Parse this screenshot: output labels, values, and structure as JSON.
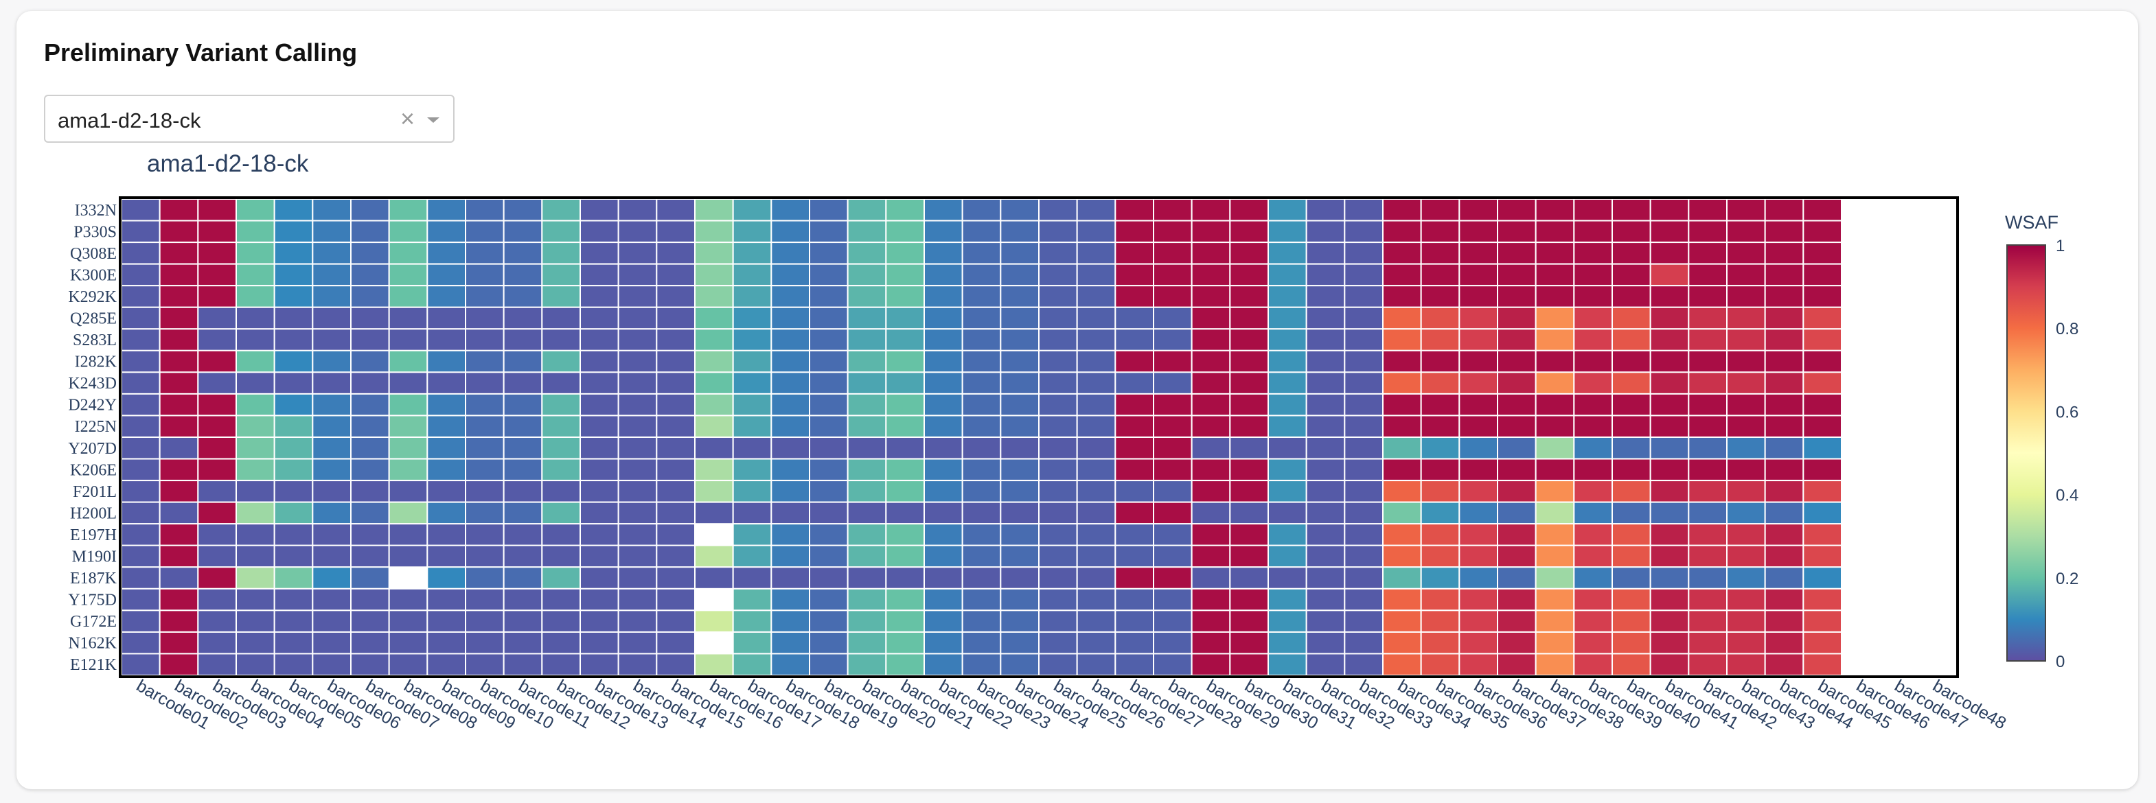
{
  "page": {
    "title": "Preliminary Variant Calling"
  },
  "sample_select": {
    "value": "ama1-d2-18-ck",
    "clear_icon": "×",
    "arrow_icon": "chevron-down-icon"
  },
  "chart_data": {
    "type": "heatmap",
    "title": "ama1-d2-18-ck",
    "colorbar_title": "WSAF",
    "colorscale": "Spectral (reversed)",
    "zlim": [
      0,
      1
    ],
    "colorbar_ticks": [
      "0",
      "0.2",
      "0.4",
      "0.6",
      "0.8",
      "1"
    ],
    "x": [
      "barcode01",
      "barcode02",
      "barcode03",
      "barcode04",
      "barcode05",
      "barcode06",
      "barcode07",
      "barcode08",
      "barcode09",
      "barcode10",
      "barcode11",
      "barcode12",
      "barcode13",
      "barcode14",
      "barcode15",
      "barcode16",
      "barcode17",
      "barcode18",
      "barcode19",
      "barcode20",
      "barcode21",
      "barcode22",
      "barcode23",
      "barcode24",
      "barcode25",
      "barcode26",
      "barcode27",
      "barcode28",
      "barcode29",
      "barcode30",
      "barcode31",
      "barcode32",
      "barcode33",
      "barcode34",
      "barcode35",
      "barcode36",
      "barcode37",
      "barcode38",
      "barcode39",
      "barcode40",
      "barcode41",
      "barcode42",
      "barcode43",
      "barcode44",
      "barcode45",
      "barcode46",
      "barcode47",
      "barcode48"
    ],
    "y": [
      "I332N",
      "P330S",
      "Q308E",
      "K300E",
      "K292K",
      "Q285E",
      "S283L",
      "I282K",
      "K243D",
      "D242Y",
      "I225N",
      "Y207D",
      "K206E",
      "F201L",
      "H200L",
      "E197H",
      "M190I",
      "E187K",
      "Y175D",
      "G172E",
      "N162K",
      "E121K"
    ],
    "z": [
      [
        0.02,
        0.98,
        0.98,
        0.2,
        0.1,
        0.08,
        0.05,
        0.2,
        0.08,
        0.05,
        0.05,
        0.18,
        0.02,
        0.02,
        0.02,
        0.25,
        0.15,
        0.08,
        0.05,
        0.18,
        0.2,
        0.08,
        0.05,
        0.05,
        0.03,
        0.03,
        0.98,
        0.98,
        0.98,
        0.98,
        0.12,
        0.02,
        0.02,
        0.98,
        0.98,
        0.98,
        0.98,
        0.98,
        0.98,
        0.98,
        0.98,
        0.98,
        0.98,
        0.98,
        0.98,
        null,
        null,
        null
      ],
      [
        0.02,
        0.98,
        0.98,
        0.2,
        0.1,
        0.08,
        0.05,
        0.2,
        0.08,
        0.05,
        0.05,
        0.18,
        0.02,
        0.02,
        0.02,
        0.25,
        0.15,
        0.08,
        0.05,
        0.18,
        0.2,
        0.08,
        0.05,
        0.05,
        0.03,
        0.03,
        0.98,
        0.98,
        0.98,
        0.98,
        0.12,
        0.02,
        0.02,
        0.98,
        0.98,
        0.98,
        0.98,
        0.98,
        0.98,
        0.98,
        0.98,
        0.98,
        0.98,
        0.98,
        0.98,
        null,
        null,
        null
      ],
      [
        0.02,
        0.98,
        0.98,
        0.2,
        0.1,
        0.08,
        0.05,
        0.2,
        0.08,
        0.05,
        0.05,
        0.18,
        0.02,
        0.02,
        0.02,
        0.25,
        0.15,
        0.08,
        0.05,
        0.18,
        0.2,
        0.08,
        0.05,
        0.05,
        0.03,
        0.03,
        0.98,
        0.98,
        0.98,
        0.98,
        0.12,
        0.02,
        0.02,
        0.98,
        0.98,
        0.98,
        0.98,
        0.98,
        0.98,
        0.98,
        0.98,
        0.98,
        0.98,
        0.98,
        0.98,
        null,
        null,
        null
      ],
      [
        0.02,
        0.98,
        0.98,
        0.2,
        0.1,
        0.08,
        0.05,
        0.2,
        0.08,
        0.05,
        0.05,
        0.18,
        0.02,
        0.02,
        0.02,
        0.25,
        0.15,
        0.08,
        0.05,
        0.18,
        0.2,
        0.08,
        0.05,
        0.05,
        0.03,
        0.03,
        0.98,
        0.98,
        0.98,
        0.98,
        0.12,
        0.02,
        0.02,
        0.98,
        0.98,
        0.98,
        0.98,
        0.98,
        0.98,
        0.98,
        0.9,
        0.98,
        0.98,
        0.98,
        0.98,
        null,
        null,
        null
      ],
      [
        0.02,
        0.98,
        0.98,
        0.2,
        0.1,
        0.08,
        0.05,
        0.2,
        0.08,
        0.05,
        0.05,
        0.18,
        0.02,
        0.02,
        0.02,
        0.25,
        0.15,
        0.08,
        0.05,
        0.18,
        0.2,
        0.08,
        0.05,
        0.05,
        0.03,
        0.03,
        0.98,
        0.98,
        0.98,
        0.98,
        0.12,
        0.02,
        0.02,
        0.98,
        0.98,
        0.98,
        0.98,
        0.98,
        0.98,
        0.98,
        0.98,
        0.98,
        0.98,
        0.98,
        0.98,
        null,
        null,
        null
      ],
      [
        0.02,
        0.98,
        0.02,
        0.02,
        0.02,
        0.02,
        0.02,
        0.02,
        0.02,
        0.02,
        0.02,
        0.02,
        0.02,
        0.02,
        0.02,
        0.2,
        0.12,
        0.08,
        0.05,
        0.15,
        0.15,
        0.08,
        0.05,
        0.05,
        0.03,
        0.03,
        0.03,
        0.03,
        0.98,
        0.98,
        0.12,
        0.02,
        0.02,
        0.82,
        0.86,
        0.9,
        0.95,
        0.75,
        0.9,
        0.85,
        0.95,
        0.92,
        0.92,
        0.95,
        0.88,
        null,
        null,
        null
      ],
      [
        0.02,
        0.98,
        0.02,
        0.02,
        0.02,
        0.02,
        0.02,
        0.02,
        0.02,
        0.02,
        0.02,
        0.02,
        0.02,
        0.02,
        0.02,
        0.2,
        0.12,
        0.08,
        0.05,
        0.15,
        0.15,
        0.08,
        0.05,
        0.05,
        0.03,
        0.03,
        0.03,
        0.03,
        0.98,
        0.98,
        0.12,
        0.02,
        0.02,
        0.82,
        0.86,
        0.9,
        0.95,
        0.75,
        0.9,
        0.85,
        0.95,
        0.92,
        0.92,
        0.95,
        0.88,
        null,
        null,
        null
      ],
      [
        0.02,
        0.98,
        0.98,
        0.2,
        0.1,
        0.08,
        0.05,
        0.2,
        0.08,
        0.05,
        0.05,
        0.18,
        0.02,
        0.02,
        0.02,
        0.25,
        0.15,
        0.08,
        0.05,
        0.18,
        0.2,
        0.08,
        0.05,
        0.05,
        0.03,
        0.03,
        0.98,
        0.98,
        0.98,
        0.98,
        0.12,
        0.02,
        0.02,
        0.98,
        0.98,
        0.98,
        0.98,
        0.98,
        0.98,
        0.98,
        0.98,
        0.98,
        0.98,
        0.98,
        0.98,
        null,
        null,
        null
      ],
      [
        0.02,
        0.98,
        0.02,
        0.02,
        0.02,
        0.02,
        0.02,
        0.02,
        0.02,
        0.02,
        0.02,
        0.02,
        0.02,
        0.02,
        0.02,
        0.2,
        0.12,
        0.08,
        0.05,
        0.15,
        0.15,
        0.08,
        0.05,
        0.05,
        0.03,
        0.03,
        0.03,
        0.03,
        0.98,
        0.98,
        0.12,
        0.02,
        0.02,
        0.82,
        0.86,
        0.9,
        0.95,
        0.75,
        0.9,
        0.85,
        0.95,
        0.92,
        0.92,
        0.95,
        0.88,
        null,
        null,
        null
      ],
      [
        0.02,
        0.98,
        0.98,
        0.2,
        0.1,
        0.08,
        0.05,
        0.2,
        0.08,
        0.05,
        0.05,
        0.18,
        0.02,
        0.02,
        0.02,
        0.25,
        0.15,
        0.08,
        0.05,
        0.18,
        0.2,
        0.08,
        0.05,
        0.05,
        0.03,
        0.03,
        0.98,
        0.98,
        0.98,
        0.98,
        0.12,
        0.02,
        0.02,
        0.98,
        0.98,
        0.98,
        0.98,
        0.98,
        0.98,
        0.98,
        0.98,
        0.98,
        0.98,
        0.98,
        0.98,
        null,
        null,
        null
      ],
      [
        0.02,
        0.98,
        0.98,
        0.22,
        0.18,
        0.08,
        0.05,
        0.22,
        0.08,
        0.05,
        0.05,
        0.18,
        0.02,
        0.02,
        0.02,
        0.3,
        0.15,
        0.08,
        0.05,
        0.18,
        0.2,
        0.08,
        0.05,
        0.05,
        0.03,
        0.03,
        0.98,
        0.98,
        0.98,
        0.98,
        0.12,
        0.02,
        0.02,
        0.98,
        0.98,
        0.98,
        0.98,
        0.98,
        0.98,
        0.98,
        0.98,
        0.98,
        0.98,
        0.98,
        0.98,
        null,
        null,
        null
      ],
      [
        0.02,
        0.02,
        0.98,
        0.22,
        0.18,
        0.08,
        0.05,
        0.22,
        0.08,
        0.05,
        0.05,
        0.18,
        0.02,
        0.02,
        0.02,
        0.02,
        0.02,
        0.02,
        0.02,
        0.02,
        0.02,
        0.02,
        0.02,
        0.02,
        0.02,
        0.02,
        0.98,
        0.98,
        0.02,
        0.02,
        0.02,
        0.02,
        0.02,
        0.18,
        0.12,
        0.08,
        0.05,
        0.28,
        0.08,
        0.05,
        0.05,
        0.05,
        0.08,
        0.05,
        0.1,
        null,
        null,
        null
      ],
      [
        0.02,
        0.98,
        0.98,
        0.22,
        0.18,
        0.08,
        0.05,
        0.22,
        0.08,
        0.05,
        0.05,
        0.18,
        0.02,
        0.02,
        0.02,
        0.3,
        0.15,
        0.08,
        0.05,
        0.18,
        0.2,
        0.08,
        0.05,
        0.05,
        0.03,
        0.03,
        0.98,
        0.98,
        0.98,
        0.98,
        0.12,
        0.02,
        0.02,
        0.98,
        0.98,
        0.98,
        0.98,
        0.98,
        0.98,
        0.98,
        0.98,
        0.98,
        0.98,
        0.98,
        0.98,
        null,
        null,
        null
      ],
      [
        0.02,
        0.98,
        0.02,
        0.02,
        0.02,
        0.02,
        0.02,
        0.02,
        0.02,
        0.02,
        0.02,
        0.02,
        0.02,
        0.02,
        0.02,
        0.3,
        0.15,
        0.08,
        0.05,
        0.18,
        0.2,
        0.08,
        0.05,
        0.05,
        0.03,
        0.03,
        0.03,
        0.03,
        0.98,
        0.98,
        0.12,
        0.02,
        0.02,
        0.82,
        0.86,
        0.9,
        0.95,
        0.75,
        0.9,
        0.85,
        0.95,
        0.92,
        0.92,
        0.95,
        0.88,
        null,
        null,
        null
      ],
      [
        0.02,
        0.02,
        0.98,
        0.28,
        0.18,
        0.08,
        0.05,
        0.28,
        0.08,
        0.05,
        0.05,
        0.18,
        0.02,
        0.02,
        0.02,
        0.02,
        0.02,
        0.02,
        0.02,
        0.02,
        0.02,
        0.02,
        0.02,
        0.02,
        0.02,
        0.02,
        0.98,
        0.98,
        0.02,
        0.02,
        0.02,
        0.02,
        0.02,
        0.22,
        0.12,
        0.08,
        0.05,
        0.32,
        0.08,
        0.05,
        0.05,
        0.05,
        0.08,
        0.05,
        0.1,
        null,
        null,
        null
      ],
      [
        0.02,
        0.98,
        0.02,
        0.02,
        0.02,
        0.02,
        0.02,
        0.02,
        0.02,
        0.02,
        0.02,
        0.02,
        0.02,
        0.02,
        0.02,
        null,
        0.15,
        0.08,
        0.05,
        0.18,
        0.2,
        0.08,
        0.05,
        0.05,
        0.03,
        0.03,
        0.03,
        0.03,
        0.98,
        0.98,
        0.12,
        0.02,
        0.02,
        0.82,
        0.86,
        0.9,
        0.95,
        0.75,
        0.9,
        0.85,
        0.95,
        0.92,
        0.92,
        0.95,
        0.88,
        null,
        null,
        null
      ],
      [
        0.02,
        0.98,
        0.02,
        0.02,
        0.02,
        0.02,
        0.02,
        0.02,
        0.02,
        0.02,
        0.02,
        0.02,
        0.02,
        0.02,
        0.02,
        0.33,
        0.15,
        0.08,
        0.05,
        0.18,
        0.2,
        0.08,
        0.05,
        0.05,
        0.03,
        0.03,
        0.03,
        0.03,
        0.98,
        0.98,
        0.12,
        0.02,
        0.02,
        0.82,
        0.86,
        0.9,
        0.95,
        0.75,
        0.9,
        0.85,
        0.95,
        0.92,
        0.92,
        0.95,
        0.88,
        null,
        null,
        null
      ],
      [
        0.02,
        0.02,
        0.98,
        0.3,
        0.22,
        0.1,
        0.05,
        null,
        0.1,
        0.05,
        0.05,
        0.18,
        0.02,
        0.02,
        0.02,
        0.02,
        0.02,
        0.02,
        0.02,
        0.02,
        0.02,
        0.02,
        0.02,
        0.02,
        0.02,
        0.02,
        0.98,
        0.98,
        0.02,
        0.02,
        0.02,
        0.02,
        0.02,
        0.18,
        0.12,
        0.08,
        0.05,
        0.28,
        0.08,
        0.05,
        0.05,
        0.05,
        0.08,
        0.05,
        0.1,
        null,
        null,
        null
      ],
      [
        0.02,
        0.98,
        0.02,
        0.02,
        0.02,
        0.02,
        0.02,
        0.02,
        0.02,
        0.02,
        0.02,
        0.02,
        0.02,
        0.02,
        0.02,
        null,
        0.18,
        0.08,
        0.05,
        0.18,
        0.2,
        0.08,
        0.05,
        0.05,
        0.03,
        0.03,
        0.03,
        0.03,
        0.98,
        0.98,
        0.12,
        0.02,
        0.02,
        0.82,
        0.86,
        0.9,
        0.95,
        0.75,
        0.9,
        0.85,
        0.95,
        0.92,
        0.92,
        0.95,
        0.88,
        null,
        null,
        null
      ],
      [
        0.02,
        0.98,
        0.02,
        0.02,
        0.02,
        0.02,
        0.02,
        0.02,
        0.02,
        0.02,
        0.02,
        0.02,
        0.02,
        0.02,
        0.02,
        0.36,
        0.18,
        0.08,
        0.05,
        0.18,
        0.2,
        0.08,
        0.05,
        0.05,
        0.03,
        0.03,
        0.03,
        0.03,
        0.98,
        0.98,
        0.12,
        0.02,
        0.02,
        0.82,
        0.86,
        0.9,
        0.95,
        0.75,
        0.9,
        0.85,
        0.95,
        0.92,
        0.92,
        0.95,
        0.88,
        null,
        null,
        null
      ],
      [
        0.02,
        0.98,
        0.02,
        0.02,
        0.02,
        0.02,
        0.02,
        0.02,
        0.02,
        0.02,
        0.02,
        0.02,
        0.02,
        0.02,
        0.02,
        null,
        0.18,
        0.08,
        0.05,
        0.18,
        0.2,
        0.08,
        0.05,
        0.05,
        0.03,
        0.03,
        0.03,
        0.03,
        0.98,
        0.98,
        0.12,
        0.02,
        0.02,
        0.82,
        0.86,
        0.9,
        0.95,
        0.75,
        0.9,
        0.85,
        0.95,
        0.92,
        0.92,
        0.95,
        0.88,
        null,
        null,
        null
      ],
      [
        0.02,
        0.98,
        0.02,
        0.02,
        0.02,
        0.02,
        0.02,
        0.02,
        0.02,
        0.02,
        0.02,
        0.02,
        0.02,
        0.02,
        0.02,
        0.33,
        0.18,
        0.08,
        0.05,
        0.18,
        0.2,
        0.08,
        0.05,
        0.05,
        0.03,
        0.03,
        0.03,
        0.03,
        0.98,
        0.98,
        0.12,
        0.02,
        0.02,
        0.82,
        0.86,
        0.9,
        0.95,
        0.75,
        0.9,
        0.85,
        0.95,
        0.92,
        0.92,
        0.95,
        0.88,
        null,
        null,
        null
      ]
    ]
  }
}
